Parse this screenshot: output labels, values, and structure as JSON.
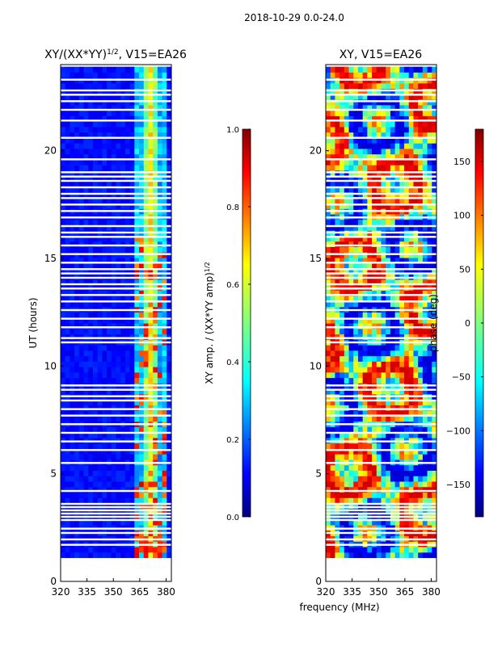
{
  "suptitle": "2018-10-29 0.0-24.0",
  "xlabel_shared": "frequency (MHz)",
  "colors": {
    "jet": [
      "#000080",
      "#0000ff",
      "#0080ff",
      "#00ffff",
      "#80ff80",
      "#ffff00",
      "#ff8000",
      "#ff0000",
      "#800000"
    ],
    "flag": "#ffffff",
    "axis": "#000000"
  },
  "chart_data": [
    {
      "type": "heatmap",
      "title_main": "XY/(XX*YY)",
      "title_sup": "1/2",
      "title_rest": ", V15=EA26",
      "xlabel": "",
      "ylabel": "UT (hours)",
      "xlim": [
        320,
        383
      ],
      "ylim": [
        0,
        24
      ],
      "xticks": [
        "320",
        "335",
        "350",
        "365",
        "380"
      ],
      "yticks": [
        "0",
        "5",
        "10",
        "15",
        "20"
      ],
      "data_time_range": [
        1.1,
        23.9
      ],
      "colorbar": {
        "label_main": "XY amp. / (XX*YY amp)",
        "label_sup": "1/2",
        "range": [
          0.0,
          1.0
        ],
        "ticks": [
          "0.0",
          "0.2",
          "0.4",
          "0.6",
          "0.8",
          "1.0"
        ]
      }
    },
    {
      "type": "heatmap",
      "title": "XY, V15=EA26",
      "xlabel": "frequency (MHz)",
      "ylabel": "",
      "xlim": [
        320,
        383
      ],
      "ylim": [
        0,
        24
      ],
      "xticks": [
        "320",
        "335",
        "350",
        "365",
        "380"
      ],
      "yticks": [
        "0",
        "5",
        "10",
        "15",
        "20"
      ],
      "data_time_range": [
        1.1,
        23.9
      ],
      "colorbar": {
        "label": "phase (deg)",
        "range": [
          -180,
          180
        ],
        "ticks": [
          "−150",
          "−100",
          "−50",
          "0",
          "50",
          "100",
          "150"
        ]
      }
    }
  ],
  "flagged_hours": [
    1.7,
    1.95,
    2.25,
    2.45,
    2.85,
    3.0,
    3.15,
    3.3,
    3.45,
    3.6,
    4.2,
    5.5,
    6.1,
    6.5,
    6.9,
    7.3,
    7.7,
    8.0,
    8.4,
    8.6,
    8.9,
    9.1,
    11.1,
    11.3,
    11.8,
    12.2,
    12.6,
    13.0,
    13.3,
    13.6,
    13.8,
    14.1,
    14.3,
    14.5,
    14.8,
    15.2,
    15.6,
    16.0,
    16.2,
    16.5,
    16.9,
    17.2,
    17.5,
    17.8,
    18.0,
    18.3,
    18.6,
    18.8,
    19.0,
    19.6,
    20.6,
    21.4,
    21.9,
    22.3,
    22.6,
    22.8,
    23.3
  ]
}
